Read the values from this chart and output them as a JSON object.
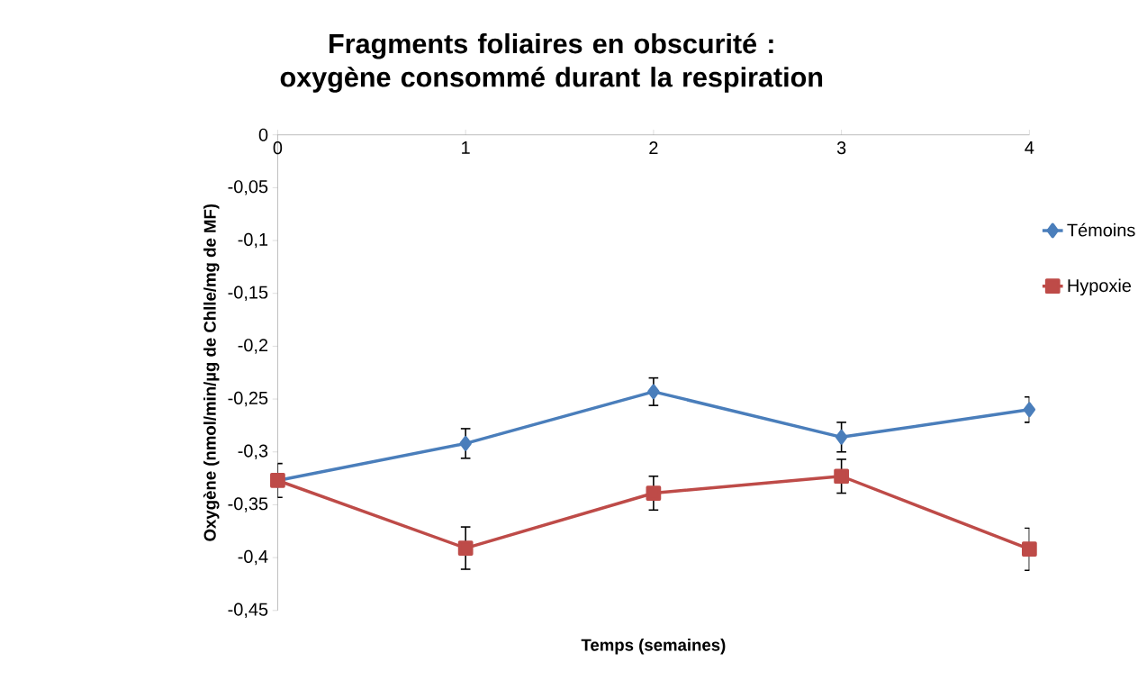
{
  "chart_data": {
    "type": "line",
    "title": "Fragments foliaires en obscurité : oxygène consommé durant la respiration",
    "xlabel": "Temps (semaines)",
    "ylabel": "Oxygène (nmol/min/µg de Chlle/mg de MF)",
    "x": [
      0,
      1,
      2,
      3,
      4
    ],
    "xlim": [
      0,
      4
    ],
    "xticks": [
      0,
      1,
      2,
      3,
      4
    ],
    "ylim": [
      -0.45,
      0
    ],
    "yticks": [
      {
        "value": 0,
        "label": "0"
      },
      {
        "value": -0.05,
        "label": "-0,05"
      },
      {
        "value": -0.1,
        "label": "-0,1"
      },
      {
        "value": -0.15,
        "label": "-0,15"
      },
      {
        "value": -0.2,
        "label": "-0,2"
      },
      {
        "value": -0.25,
        "label": "-0,25"
      },
      {
        "value": -0.3,
        "label": "-0,3"
      },
      {
        "value": -0.35,
        "label": "-0,35"
      },
      {
        "value": -0.4,
        "label": "-0,4"
      },
      {
        "value": -0.45,
        "label": "-0,45"
      }
    ],
    "series": [
      {
        "name": "Témoins",
        "color": "#4a7ebb",
        "marker": "diamond",
        "values": [
          -0.327,
          -0.292,
          -0.243,
          -0.286,
          -0.26
        ],
        "errors": [
          null,
          0.014,
          0.013,
          0.014,
          0.012
        ]
      },
      {
        "name": "Hypoxie",
        "color": "#be4b48",
        "marker": "square",
        "values": [
          -0.327,
          -0.391,
          -0.339,
          -0.323,
          -0.392
        ],
        "errors": [
          0.016,
          0.02,
          0.016,
          0.016,
          0.02
        ]
      }
    ],
    "legend": "right",
    "grid": false,
    "line_style": "solid"
  }
}
